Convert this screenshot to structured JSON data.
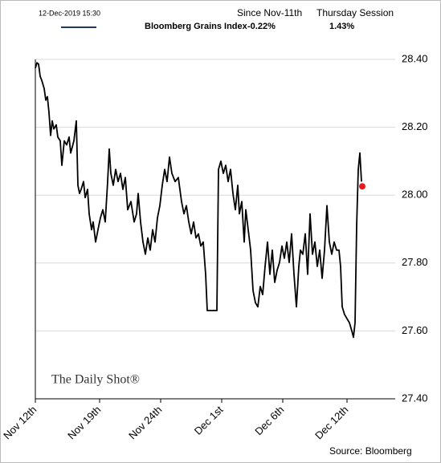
{
  "chart_data": {
    "type": "line",
    "timestamp": "12-Dec-2019 15:30",
    "header": {
      "columns": [
        "Since Nov-11th",
        "Thursday Session"
      ],
      "values": [
        "-0.22%",
        "1.43%"
      ]
    },
    "watermark": "The Daily Shot®",
    "source": "Source: Bloomberg",
    "xlim": [
      0,
      448
    ],
    "xticks": [
      {
        "value": 0,
        "label": "Nov 12th"
      },
      {
        "value": 80,
        "label": "Nov 19th"
      },
      {
        "value": 156,
        "label": "Nov 24th"
      },
      {
        "value": 232,
        "label": "Dec 1st"
      },
      {
        "value": 308,
        "label": "Dec 6th"
      },
      {
        "value": 388,
        "label": "Dec 12th"
      }
    ],
    "ylim": [
      27.4,
      28.4
    ],
    "yticks": [
      {
        "value": 27.4,
        "label": "27.40"
      },
      {
        "value": 27.6,
        "label": "27.60"
      },
      {
        "value": 27.8,
        "label": "27.80"
      },
      {
        "value": 28.0,
        "label": "28.00"
      },
      {
        "value": 28.2,
        "label": "28.20"
      },
      {
        "value": 28.4,
        "label": "28.40"
      }
    ],
    "grid": true,
    "series": [
      {
        "name": "Bloomberg Grains Index",
        "color": "#000000",
        "x": [
          0,
          2,
          4,
          6,
          8,
          11,
          13,
          15,
          17,
          19,
          21,
          23,
          26,
          28,
          31,
          33,
          36,
          39,
          42,
          44,
          48,
          51,
          53,
          55,
          57,
          60,
          62,
          65,
          67,
          70,
          72,
          75,
          78,
          81,
          84,
          87,
          90,
          92,
          94,
          97,
          100,
          103,
          106,
          109,
          112,
          115,
          119,
          123,
          126,
          128,
          131,
          134,
          137,
          140,
          143,
          146,
          149,
          152,
          155,
          158,
          161,
          164,
          167,
          170,
          174,
          178,
          182,
          185,
          188,
          191,
          194,
          197,
          200,
          203,
          206,
          209,
          212,
          214,
          218,
          222,
          226,
          228,
          231,
          234,
          237,
          240,
          243,
          246,
          249,
          252,
          254,
          257,
          260,
          262,
          265,
          268,
          271,
          274,
          277,
          280,
          283,
          286,
          289,
          292,
          295,
          298,
          301,
          304,
          307,
          310,
          313,
          316,
          319,
          322,
          325,
          328,
          330,
          333,
          336,
          339,
          342,
          345,
          348,
          351,
          354,
          357,
          360,
          363,
          366,
          369,
          372,
          375,
          378,
          380,
          382,
          385,
          388,
          391,
          394,
          396,
          398,
          400,
          402,
          404,
          406
        ],
        "values": [
          28.374,
          28.39,
          28.386,
          28.35,
          28.338,
          28.314,
          28.28,
          28.29,
          28.243,
          28.176,
          28.219,
          28.195,
          28.207,
          28.171,
          28.16,
          28.088,
          28.16,
          28.148,
          28.171,
          28.124,
          28.16,
          28.219,
          28.029,
          28.005,
          28.017,
          28.04,
          27.993,
          28.017,
          27.945,
          27.898,
          27.921,
          27.862,
          27.898,
          27.933,
          27.957,
          27.921,
          28.04,
          28.136,
          28.064,
          28.029,
          28.076,
          28.04,
          28.064,
          28.017,
          28.052,
          27.957,
          27.981,
          27.921,
          27.945,
          28.005,
          27.921,
          27.862,
          27.826,
          27.874,
          27.838,
          27.898,
          27.862,
          27.933,
          27.969,
          28.029,
          28.076,
          28.04,
          28.112,
          28.064,
          28.04,
          28.052,
          27.981,
          27.945,
          27.969,
          27.921,
          27.886,
          27.921,
          27.874,
          27.886,
          27.85,
          27.862,
          27.767,
          27.66,
          27.66,
          27.66,
          27.66,
          28.076,
          28.1,
          28.064,
          28.088,
          28.04,
          28.076,
          28.005,
          27.957,
          28.029,
          27.945,
          27.981,
          27.862,
          27.957,
          27.898,
          27.838,
          27.719,
          27.683,
          27.671,
          27.731,
          27.707,
          27.79,
          27.862,
          27.767,
          27.838,
          27.743,
          27.779,
          27.802,
          27.85,
          27.814,
          27.862,
          27.802,
          27.886,
          27.767,
          27.671,
          27.79,
          27.838,
          27.826,
          27.886,
          27.767,
          27.945,
          27.826,
          27.862,
          27.79,
          27.838,
          27.755,
          27.838,
          27.969,
          27.862,
          27.826,
          27.862,
          27.838,
          27.838,
          27.79,
          27.671,
          27.648,
          27.636,
          27.624,
          27.6,
          27.581,
          27.624,
          27.91,
          28.076,
          28.124,
          28.04
        ]
      }
    ],
    "last_point": {
      "x": 407,
      "value": 28.026,
      "color": "#e8191b"
    }
  }
}
